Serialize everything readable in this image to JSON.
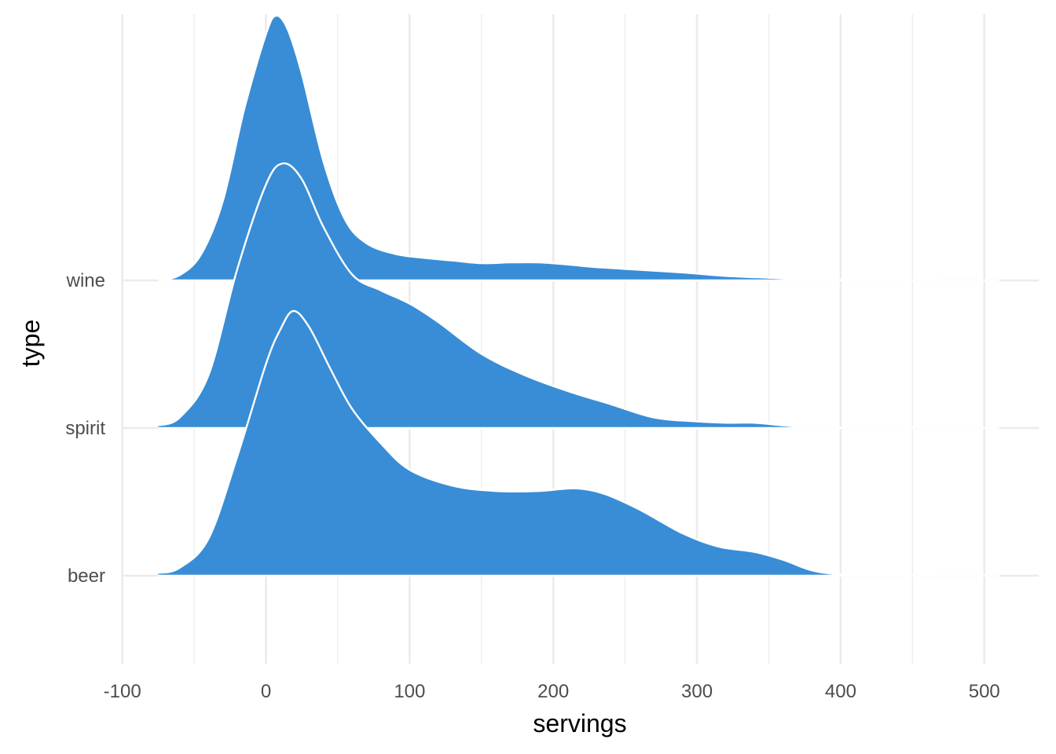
{
  "chart_data": {
    "type": "ridgeline",
    "xlabel": "servings",
    "ylabel": "type",
    "xlim": [
      -100,
      510
    ],
    "x_ticks": [
      "-100",
      "0",
      "100",
      "200",
      "300",
      "400",
      "500"
    ],
    "x_tick_values": [
      -100,
      0,
      100,
      200,
      300,
      400,
      500
    ],
    "categories": [
      "beer",
      "spirit",
      "wine"
    ],
    "grid": true,
    "fill_color": "#388dd6",
    "outline_color": "#ffffff",
    "series": [
      {
        "name": "beer",
        "x": [
          -75,
          -60,
          -40,
          -20,
          0,
          10,
          19,
          30,
          45,
          60,
          80,
          100,
          130,
          160,
          190,
          215,
          235,
          260,
          290,
          315,
          340,
          360,
          380,
          400,
          420,
          450,
          480,
          510
        ],
        "density": [
          0.01,
          0.03,
          0.14,
          0.45,
          0.8,
          0.93,
          1.0,
          0.94,
          0.78,
          0.63,
          0.5,
          0.4,
          0.34,
          0.32,
          0.32,
          0.33,
          0.31,
          0.25,
          0.16,
          0.11,
          0.09,
          0.06,
          0.02,
          0.004,
          0.001,
          0.0005,
          0.0002,
          0.0
        ]
      },
      {
        "name": "spirit",
        "x": [
          -75,
          -60,
          -40,
          -20,
          0,
          12,
          25,
          40,
          60,
          80,
          100,
          120,
          150,
          180,
          210,
          240,
          270,
          300,
          320,
          340,
          360,
          380,
          400,
          420,
          440,
          460,
          480,
          500,
          510
        ],
        "density": [
          0.01,
          0.04,
          0.2,
          0.6,
          0.92,
          1.0,
          0.94,
          0.76,
          0.58,
          0.52,
          0.47,
          0.4,
          0.28,
          0.2,
          0.14,
          0.09,
          0.04,
          0.025,
          0.02,
          0.02,
          0.01,
          0.003,
          0.002,
          0.002,
          0.004,
          0.002,
          0.001,
          0.0,
          0.0
        ]
      },
      {
        "name": "wine",
        "x": [
          -75,
          -60,
          -45,
          -30,
          -15,
          0,
          7,
          15,
          25,
          40,
          55,
          70,
          90,
          110,
          130,
          150,
          170,
          190,
          210,
          230,
          260,
          290,
          320,
          350,
          380,
          410,
          450,
          500,
          510
        ],
        "density": [
          0.0,
          0.02,
          0.1,
          0.3,
          0.65,
          0.93,
          1.0,
          0.95,
          0.78,
          0.45,
          0.23,
          0.14,
          0.1,
          0.085,
          0.075,
          0.065,
          0.068,
          0.068,
          0.06,
          0.05,
          0.04,
          0.03,
          0.017,
          0.01,
          0.004,
          0.001,
          0.0004,
          0.0002,
          0.0
        ]
      }
    ]
  }
}
